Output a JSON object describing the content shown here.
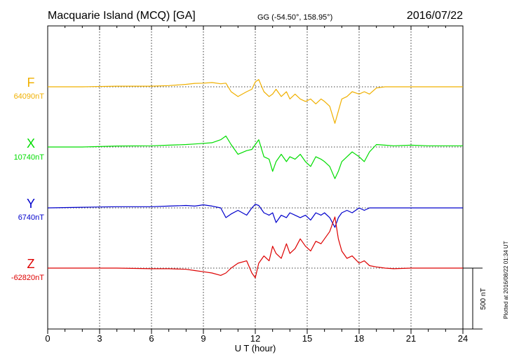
{
  "header": {
    "station": "Macquarie Island (MCQ)  [GA]",
    "coordinates": "GG (-54.50°, 158.95°)",
    "date": "2016/07/22"
  },
  "footer": {
    "plotted_note": "Plotted at 2016/08/22 01:34 UT",
    "scale_label": "500 nT"
  },
  "chart_data": {
    "type": "line",
    "title": "Macquarie Island (MCQ)  [GA]",
    "xlabel": "U T (hour)",
    "ylabel": "",
    "xlim": [
      0,
      24
    ],
    "xticks": [
      0,
      3,
      6,
      9,
      12,
      15,
      18,
      21,
      24
    ],
    "grid": true,
    "scale_bar_nT": 500,
    "series": [
      {
        "name": "F",
        "baseline_label": "64090nT",
        "color": "#f0b000",
        "x": [
          0,
          2,
          4,
          6,
          7,
          8,
          8.5,
          9,
          9.5,
          10,
          10.3,
          10.6,
          11,
          11.5,
          11.8,
          12,
          12.2,
          12.5,
          12.8,
          13,
          13.2,
          13.5,
          13.8,
          14,
          14.3,
          14.6,
          14.9,
          15.2,
          15.5,
          15.8,
          16,
          16.3,
          16.6,
          16.8,
          17,
          17.3,
          17.6,
          18,
          18.3,
          18.6,
          19,
          19.5,
          20,
          21,
          22,
          23,
          24
        ],
        "values": [
          0,
          0,
          5,
          5,
          10,
          20,
          28,
          30,
          35,
          25,
          30,
          -40,
          -80,
          -40,
          -20,
          40,
          60,
          -40,
          -80,
          -60,
          -20,
          -80,
          -40,
          -100,
          -60,
          -100,
          -120,
          -100,
          -140,
          -100,
          -120,
          -160,
          -300,
          -200,
          -100,
          -80,
          -40,
          -60,
          -40,
          -60,
          -10,
          0,
          0,
          0,
          0,
          0,
          0
        ]
      },
      {
        "name": "X",
        "baseline_label": "10740nT",
        "color": "#00dd00",
        "x": [
          0,
          2,
          4,
          6,
          7,
          8,
          8.5,
          9,
          9.5,
          10,
          10.3,
          10.6,
          11,
          11.5,
          11.8,
          12,
          12.2,
          12.5,
          12.8,
          13,
          13.2,
          13.5,
          13.8,
          14,
          14.3,
          14.6,
          14.9,
          15.2,
          15.5,
          15.8,
          16,
          16.3,
          16.6,
          16.8,
          17,
          17.3,
          17.6,
          18,
          18.3,
          18.6,
          19,
          19.5,
          20,
          21,
          22,
          23,
          24
        ],
        "values": [
          0,
          0,
          8,
          10,
          15,
          20,
          25,
          30,
          35,
          60,
          90,
          20,
          -60,
          -30,
          -20,
          20,
          60,
          -80,
          -100,
          -200,
          -120,
          -60,
          -120,
          -80,
          -100,
          -60,
          -120,
          -160,
          -80,
          -100,
          -120,
          -160,
          -260,
          -200,
          -120,
          -80,
          -40,
          -80,
          -120,
          -40,
          20,
          15,
          10,
          15,
          10,
          10,
          10
        ]
      },
      {
        "name": "Y",
        "baseline_label": "6740nT",
        "color": "#0000cc",
        "x": [
          0,
          2,
          4,
          6,
          7,
          8,
          8.5,
          9,
          9.5,
          10,
          10.3,
          10.6,
          11,
          11.5,
          11.8,
          12,
          12.2,
          12.5,
          12.8,
          13,
          13.2,
          13.5,
          13.8,
          14,
          14.3,
          14.6,
          14.9,
          15.2,
          15.5,
          15.8,
          16,
          16.3,
          16.6,
          16.8,
          17,
          17.3,
          17.6,
          18,
          18.3,
          18.6,
          19,
          19.5,
          20,
          21,
          22,
          23,
          24
        ],
        "values": [
          0,
          5,
          10,
          10,
          15,
          20,
          15,
          25,
          15,
          0,
          -80,
          -50,
          -20,
          -60,
          0,
          30,
          20,
          -40,
          -60,
          -40,
          -120,
          -60,
          -80,
          -40,
          -60,
          -80,
          -60,
          -100,
          -40,
          -60,
          -40,
          -80,
          -160,
          -80,
          -40,
          -20,
          -40,
          0,
          -20,
          0,
          0,
          0,
          0,
          0,
          0,
          0,
          0
        ]
      },
      {
        "name": "Z",
        "baseline_label": "-62820nT",
        "color": "#dd0000",
        "x": [
          0,
          2,
          4,
          6,
          7,
          8,
          8.5,
          9,
          9.5,
          10,
          10.3,
          10.6,
          11,
          11.5,
          11.8,
          12,
          12.2,
          12.5,
          12.8,
          13,
          13.2,
          13.5,
          13.8,
          14,
          14.3,
          14.6,
          14.9,
          15.2,
          15.5,
          15.8,
          16,
          16.3,
          16.6,
          16.8,
          17,
          17.3,
          17.6,
          18,
          18.3,
          18.6,
          19,
          19.5,
          20,
          21,
          22,
          23,
          24
        ],
        "values": [
          0,
          0,
          0,
          -5,
          -5,
          -10,
          -20,
          -30,
          -40,
          -60,
          -40,
          0,
          40,
          60,
          -40,
          -80,
          40,
          100,
          60,
          180,
          120,
          80,
          200,
          120,
          160,
          240,
          180,
          140,
          220,
          200,
          240,
          300,
          420,
          240,
          140,
          80,
          100,
          40,
          60,
          20,
          10,
          0,
          -5,
          0,
          0,
          0,
          0
        ]
      }
    ]
  }
}
